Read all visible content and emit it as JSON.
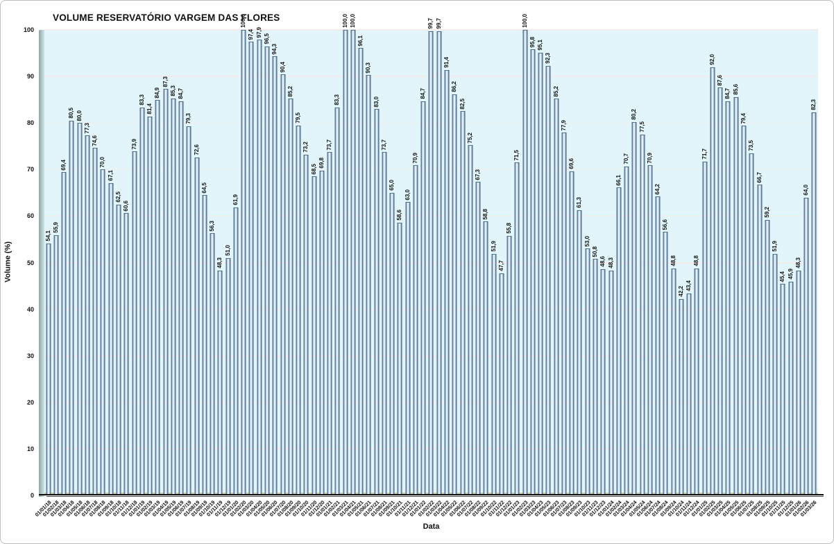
{
  "chart_data": {
    "type": "bar",
    "title": "VOLUME RESERVATÓRIO VARGEM DAS FLORES",
    "xlabel": "Data",
    "ylabel": "Volume (%)",
    "ylim": [
      0,
      100
    ],
    "yticks": [
      0,
      10,
      20,
      30,
      40,
      50,
      60,
      70,
      80,
      90,
      100
    ],
    "grid": true,
    "legend": false,
    "decimal_separator": ",",
    "categories": [
      "01/01/18",
      "01/02/18",
      "01/03/18",
      "01/04/18",
      "01/05/18",
      "01/06/18",
      "01/07/18",
      "01/08/18",
      "01/09/18",
      "01/10/18",
      "01/11/18",
      "01/12/18",
      "01/01/19",
      "01/02/19",
      "01/03/19",
      "01/04/19",
      "01/05/19",
      "01/06/19",
      "01/07/19",
      "01/08/19",
      "01/09/19",
      "01/10/19",
      "01/11/19",
      "01/12/19",
      "01/01/20",
      "01/02/20",
      "01/03/20",
      "01/04/20",
      "01/05/20",
      "01/06/20",
      "01/07/20",
      "01/08/20",
      "01/09/20",
      "01/10/20",
      "01/11/20",
      "01/12/20",
      "01/01/21",
      "01/02/21",
      "01/03/21",
      "01/04/21",
      "01/05/21",
      "01/06/21",
      "01/07/21",
      "01/08/21",
      "01/09/21",
      "01/10/21",
      "01/11/21",
      "01/12/21",
      "01/01/22",
      "01/02/22",
      "01/03/22",
      "01/04/22",
      "01/05/22",
      "01/06/22",
      "01/07/22",
      "01/08/22",
      "01/09/22",
      "01/10/22",
      "01/11/22",
      "01/12/22",
      "01/01/23",
      "01/02/23",
      "01/03/23",
      "01/04/23",
      "01/05/23",
      "01/06/23",
      "01/07/23",
      "01/08/23",
      "01/09/23",
      "01/10/23",
      "01/11/23",
      "01/12/23",
      "01/01/24",
      "01/02/24",
      "01/03/24",
      "01/04/24",
      "01/05/24",
      "01/06/24",
      "01/07/24",
      "01/08/24",
      "01/09/24",
      "01/10/24",
      "01/11/24",
      "01/12/24",
      "01/01/25",
      "01/02/25",
      "01/03/25",
      "01/04/25",
      "01/05/25",
      "01/06/25",
      "01/07/25",
      "01/08/25",
      "01/09/25",
      "01/10/25",
      "01/11/25",
      "01/12/25",
      "01/01/26",
      "01/02/26",
      "01/03/26"
    ],
    "values": [
      54.1,
      55.9,
      69.4,
      80.5,
      80.0,
      77.3,
      74.6,
      70.0,
      67.1,
      62.5,
      60.6,
      73.9,
      83.3,
      81.4,
      84.9,
      87.3,
      85.3,
      84.7,
      79.3,
      72.6,
      64.5,
      56.3,
      48.3,
      51.0,
      61.9,
      100.0,
      97.4,
      97.9,
      96.5,
      94.3,
      90.4,
      85.2,
      79.5,
      73.2,
      68.5,
      69.8,
      73.7,
      83.3,
      100.0,
      100.0,
      96.1,
      90.3,
      83.0,
      73.7,
      65.0,
      58.6,
      63.0,
      70.9,
      84.7,
      99.7,
      99.7,
      91.4,
      86.2,
      82.5,
      75.2,
      67.3,
      58.8,
      51.9,
      47.7,
      55.8,
      71.5,
      100.0,
      95.8,
      95.1,
      92.3,
      85.2,
      77.9,
      69.6,
      61.3,
      53.0,
      50.8,
      48.6,
      48.3,
      66.1,
      70.7,
      80.2,
      77.5,
      70.9,
      64.2,
      56.6,
      48.8,
      42.2,
      43.4,
      48.8,
      71.7,
      92.0,
      87.6,
      84.7,
      85.6,
      79.4,
      73.5,
      66.7,
      59.2,
      51.9,
      45.4,
      45.9,
      48.3,
      64.0,
      82.3
    ],
    "colors": {
      "plot_bg": "#e1f5fa",
      "bar_edge": "#5f7f9f",
      "bar_center": "#f9fcfe",
      "bar_border": "#405e7c",
      "gridline": "#f3ebe9",
      "floor": "#c9c7a0",
      "wall": "#8fa5a9",
      "axis_line": "#101010",
      "text": "#111111",
      "frame_border": "#bdbdbd",
      "background": "#ffffff"
    }
  }
}
